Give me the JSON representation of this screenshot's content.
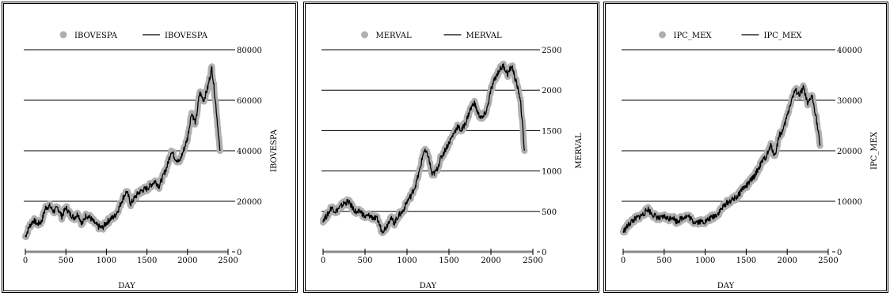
{
  "chart_data": [
    {
      "type": "line",
      "xlabel": "DAY",
      "ylabel": "IBOVESPA",
      "xlim": [
        0,
        2500
      ],
      "ylim": [
        0,
        80000
      ],
      "xticks": [
        0,
        500,
        1000,
        1500,
        2000,
        2500
      ],
      "yticks": [
        0,
        20000,
        40000,
        60000,
        80000
      ],
      "grid": "horizontal",
      "legend": {
        "position": "top",
        "entries": [
          "IBOVESPA",
          "IBOVESPA"
        ]
      },
      "series": [
        {
          "name": "IBOVESPA",
          "style": "points",
          "color": "#b0b0b0"
        },
        {
          "name": "IBOVESPA",
          "style": "line",
          "color": "#000000"
        }
      ],
      "x": [
        0,
        50,
        100,
        150,
        200,
        250,
        300,
        350,
        400,
        450,
        500,
        550,
        600,
        650,
        700,
        750,
        800,
        850,
        900,
        950,
        1000,
        1050,
        1100,
        1150,
        1200,
        1250,
        1300,
        1350,
        1400,
        1450,
        1500,
        1550,
        1600,
        1650,
        1700,
        1750,
        1800,
        1850,
        1900,
        1950,
        2000,
        2050,
        2100,
        2150,
        2200,
        2250,
        2300,
        2350,
        2400
      ],
      "values": [
        6000,
        10000,
        12500,
        11000,
        12000,
        17500,
        18000,
        16000,
        17500,
        14000,
        17500,
        15000,
        13500,
        15000,
        11000,
        14500,
        13500,
        11500,
        10000,
        9500,
        11500,
        13000,
        14000,
        17000,
        21000,
        24000,
        19000,
        21500,
        23500,
        24500,
        25000,
        26500,
        28000,
        26000,
        30000,
        34000,
        40000,
        37000,
        35500,
        40000,
        45000,
        55000,
        51000,
        63000,
        60000,
        65000,
        73000,
        58000,
        40000
      ]
    },
    {
      "type": "line",
      "xlabel": "DAY",
      "ylabel": "MERVAL",
      "xlim": [
        0,
        2500
      ],
      "ylim": [
        0,
        2500
      ],
      "xticks": [
        0,
        500,
        1000,
        1500,
        2000,
        2500
      ],
      "yticks": [
        0,
        500,
        1000,
        1500,
        2000,
        2500
      ],
      "grid": "horizontal",
      "legend": {
        "position": "top",
        "entries": [
          "MERVAL",
          "MERVAL"
        ]
      },
      "series": [
        {
          "name": "MERVAL",
          "style": "points",
          "color": "#b0b0b0"
        },
        {
          "name": "MERVAL",
          "style": "line",
          "color": "#000000"
        }
      ],
      "x": [
        0,
        50,
        100,
        150,
        200,
        250,
        300,
        350,
        400,
        450,
        500,
        550,
        600,
        650,
        700,
        750,
        800,
        850,
        900,
        950,
        1000,
        1050,
        1100,
        1150,
        1200,
        1250,
        1300,
        1350,
        1400,
        1450,
        1500,
        1550,
        1600,
        1650,
        1700,
        1750,
        1800,
        1850,
        1900,
        1950,
        2000,
        2050,
        2100,
        2150,
        2200,
        2250,
        2300,
        2350,
        2400
      ],
      "values": [
        400,
        450,
        550,
        500,
        550,
        600,
        620,
        550,
        480,
        500,
        430,
        450,
        420,
        400,
        260,
        300,
        420,
        360,
        450,
        500,
        620,
        700,
        820,
        1000,
        1250,
        1200,
        950,
        1000,
        1150,
        1250,
        1350,
        1450,
        1550,
        1500,
        1600,
        1750,
        1850,
        1700,
        1650,
        1750,
        2000,
        2150,
        2250,
        2300,
        2200,
        2300,
        2100,
        1900,
        1250
      ]
    },
    {
      "type": "line",
      "xlabel": "DAY",
      "ylabel": "IPC_MEX",
      "xlim": [
        0,
        2500
      ],
      "ylim": [
        0,
        40000
      ],
      "xticks": [
        0,
        500,
        1000,
        1500,
        2000,
        2500
      ],
      "yticks": [
        0,
        10000,
        20000,
        30000,
        40000
      ],
      "grid": "horizontal",
      "legend": {
        "position": "top",
        "entries": [
          "IPC_MEX",
          "IPC_MEX"
        ]
      },
      "series": [
        {
          "name": "IPC_MEX",
          "style": "points",
          "color": "#b0b0b0"
        },
        {
          "name": "IPC_MEX",
          "style": "line",
          "color": "#000000"
        }
      ],
      "x": [
        0,
        50,
        100,
        150,
        200,
        250,
        300,
        350,
        400,
        450,
        500,
        550,
        600,
        650,
        700,
        750,
        800,
        850,
        900,
        950,
        1000,
        1050,
        1100,
        1150,
        1200,
        1250,
        1300,
        1350,
        1400,
        1450,
        1500,
        1550,
        1600,
        1650,
        1700,
        1750,
        1800,
        1850,
        1900,
        1950,
        2000,
        2050,
        2100,
        2150,
        2200,
        2250,
        2300,
        2350,
        2400
      ],
      "values": [
        4000,
        5000,
        6000,
        6500,
        7000,
        7500,
        8500,
        7500,
        7000,
        6500,
        7000,
        6500,
        7000,
        6000,
        6500,
        7000,
        7000,
        6000,
        6000,
        6000,
        6000,
        6500,
        7000,
        7500,
        8500,
        9500,
        10000,
        10500,
        11000,
        12500,
        13000,
        14000,
        15000,
        16500,
        18000,
        19000,
        21000,
        19000,
        23000,
        24000,
        27000,
        30000,
        32000,
        31000,
        32500,
        29000,
        31000,
        27000,
        21000
      ]
    }
  ]
}
